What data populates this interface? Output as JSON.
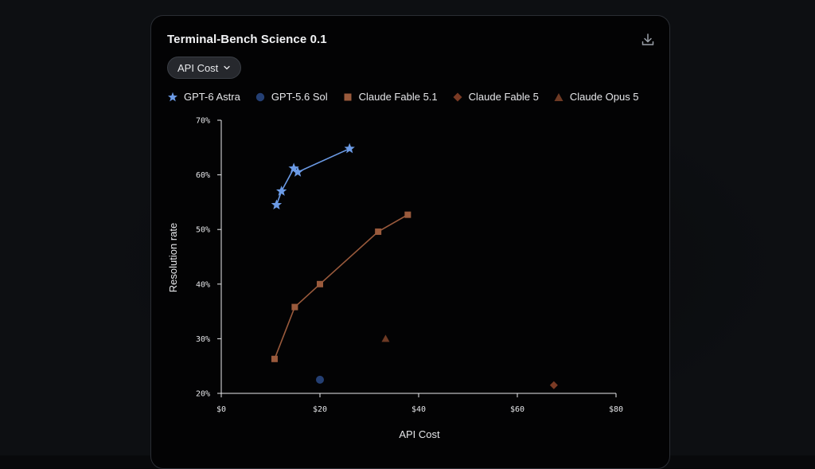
{
  "card": {
    "title": "Terminal-Bench Science 0.1",
    "metric_select": "API Cost"
  },
  "colors": {
    "gpt6_astra": "#6c9be6",
    "gpt56_sol": "#243f73",
    "claude_fable_51": "#9a5a3c",
    "claude_fable_5": "#7a3a24",
    "claude_opus_5": "#6e3a24"
  },
  "chart_data": {
    "type": "scatter",
    "xlabel": "API Cost",
    "ylabel": "Resolution rate",
    "xlim": [
      0,
      80
    ],
    "ylim": [
      20,
      70
    ],
    "x_ticks": [
      "$0",
      "$20",
      "$40",
      "$60",
      "$80"
    ],
    "y_ticks": [
      "20%",
      "30%",
      "40%",
      "50%",
      "60%",
      "70%"
    ],
    "legend_position": "top",
    "grid": false,
    "series": [
      {
        "name": "GPT-6 Astra",
        "marker": "star",
        "connected": true,
        "points": [
          {
            "x": 11.2,
            "y": 54.5
          },
          {
            "x": 12.2,
            "y": 57.0
          },
          {
            "x": 14.7,
            "y": 61.2
          },
          {
            "x": 15.5,
            "y": 60.5
          },
          {
            "x": 26.0,
            "y": 64.8
          }
        ]
      },
      {
        "name": "GPT-5.6 Sol",
        "marker": "circle",
        "connected": false,
        "points": [
          {
            "x": 20.0,
            "y": 22.5
          }
        ]
      },
      {
        "name": "Claude Fable 5.1",
        "marker": "square",
        "connected": true,
        "points": [
          {
            "x": 10.8,
            "y": 26.3
          },
          {
            "x": 14.9,
            "y": 35.8
          },
          {
            "x": 20.0,
            "y": 40.0
          },
          {
            "x": 31.8,
            "y": 49.6
          },
          {
            "x": 37.8,
            "y": 52.7
          }
        ]
      },
      {
        "name": "Claude Fable 5",
        "marker": "diamond",
        "connected": false,
        "points": [
          {
            "x": 67.4,
            "y": 21.5
          }
        ]
      },
      {
        "name": "Claude Opus 5",
        "marker": "triangle",
        "connected": false,
        "points": [
          {
            "x": 33.3,
            "y": 30.0
          }
        ]
      }
    ]
  },
  "legend_items": [
    {
      "key": "gpt6_astra",
      "label": "GPT-6 Astra",
      "marker": "star"
    },
    {
      "key": "gpt56_sol",
      "label": "GPT-5.6 Sol",
      "marker": "circle"
    },
    {
      "key": "claude_fable_51",
      "label": "Claude Fable 5.1",
      "marker": "square"
    },
    {
      "key": "claude_fable_5",
      "label": "Claude Fable 5",
      "marker": "diamond"
    },
    {
      "key": "claude_opus_5",
      "label": "Claude Opus 5",
      "marker": "triangle"
    }
  ],
  "icons": {
    "download": "download-icon",
    "chevron": "chevron-down-icon"
  }
}
